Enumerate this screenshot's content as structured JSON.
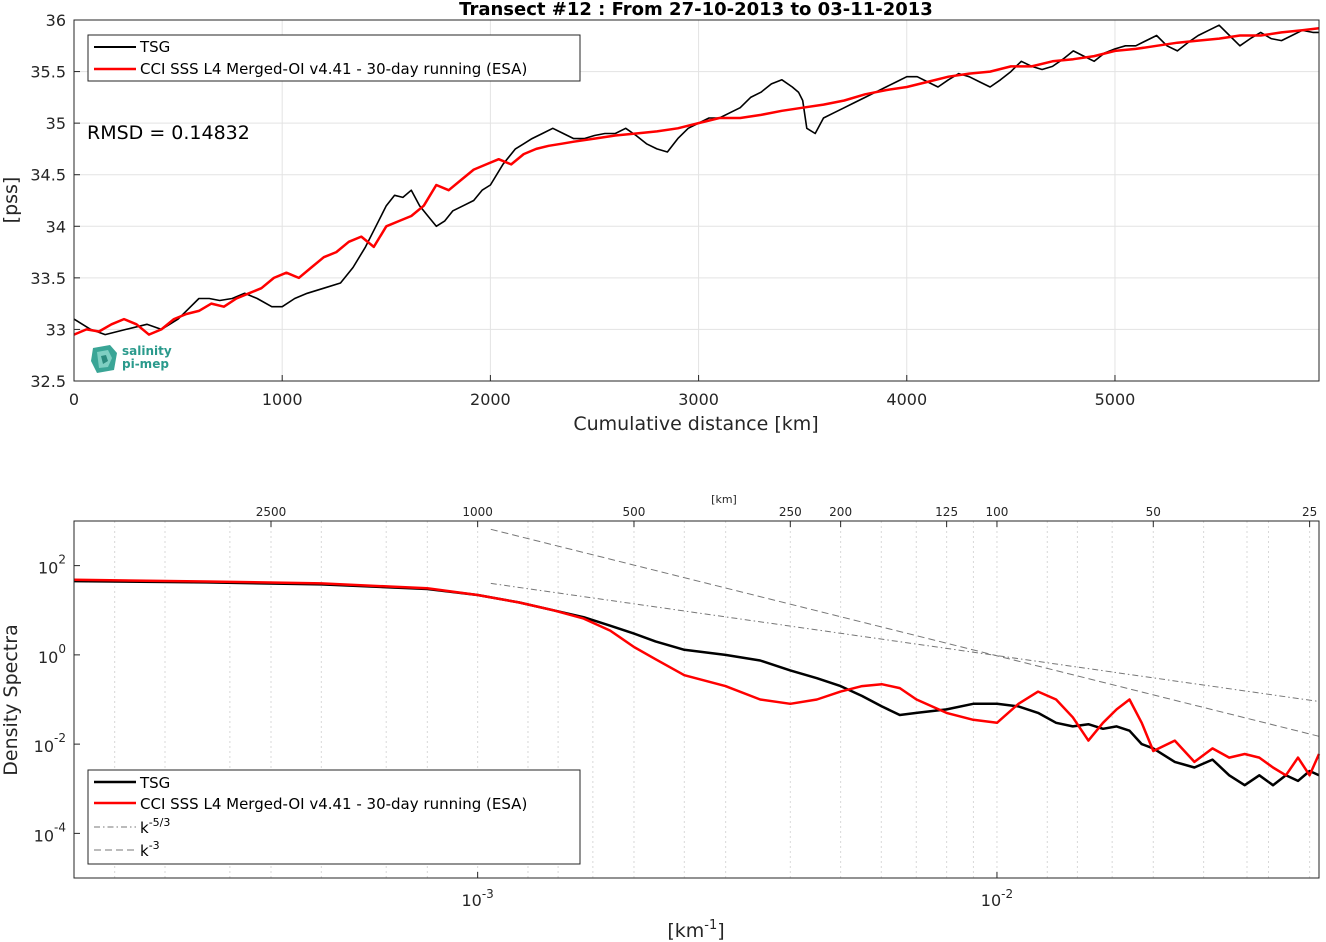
{
  "logo": {
    "line1": "salinity",
    "line2": "pi-mep"
  },
  "chart_data": [
    {
      "type": "line",
      "title": "Transect #12 : From 27-10-2013 to 03-11-2013",
      "xlabel": "Cumulative distance [km]",
      "ylabel": "[pss]",
      "xlim": [
        0,
        5980
      ],
      "ylim": [
        32.5,
        36
      ],
      "xticks": [
        "0",
        "1000",
        "2000",
        "3000",
        "4000",
        "5000"
      ],
      "yticks": [
        "32.5",
        "33",
        "33.5",
        "34",
        "34.5",
        "35",
        "35.5",
        "36"
      ],
      "grid": true,
      "legend_position": "top-left",
      "annotation": "RMSD = 0.14832",
      "series": [
        {
          "name": "TSG",
          "color": "#000000",
          "x": [
            0,
            80,
            150,
            250,
            350,
            420,
            500,
            550,
            600,
            650,
            700,
            760,
            820,
            880,
            950,
            1000,
            1060,
            1120,
            1200,
            1280,
            1340,
            1400,
            1450,
            1500,
            1540,
            1580,
            1620,
            1660,
            1700,
            1740,
            1780,
            1820,
            1870,
            1920,
            1960,
            2000,
            2060,
            2120,
            2160,
            2200,
            2250,
            2300,
            2350,
            2400,
            2450,
            2500,
            2550,
            2600,
            2650,
            2700,
            2750,
            2800,
            2850,
            2900,
            2950,
            3000,
            3050,
            3100,
            3150,
            3200,
            3250,
            3300,
            3350,
            3400,
            3450,
            3480,
            3500,
            3520,
            3560,
            3600,
            3650,
            3700,
            3750,
            3800,
            3850,
            3900,
            3950,
            4000,
            4050,
            4100,
            4150,
            4200,
            4250,
            4300,
            4350,
            4400,
            4450,
            4500,
            4550,
            4600,
            4650,
            4700,
            4750,
            4800,
            4850,
            4900,
            4950,
            5000,
            5050,
            5100,
            5150,
            5200,
            5250,
            5300,
            5350,
            5400,
            5450,
            5500,
            5550,
            5600,
            5650,
            5700,
            5750,
            5800,
            5850,
            5900,
            5950,
            5980
          ],
          "y": [
            33.1,
            33.0,
            32.95,
            33.0,
            33.05,
            33.0,
            33.1,
            33.2,
            33.3,
            33.3,
            33.28,
            33.3,
            33.35,
            33.3,
            33.22,
            33.22,
            33.3,
            33.35,
            33.4,
            33.45,
            33.6,
            33.8,
            34.0,
            34.2,
            34.3,
            34.28,
            34.35,
            34.2,
            34.1,
            34.0,
            34.05,
            34.15,
            34.2,
            34.25,
            34.35,
            34.4,
            34.6,
            34.75,
            34.8,
            34.85,
            34.9,
            34.95,
            34.9,
            34.85,
            34.85,
            34.88,
            34.9,
            34.9,
            34.95,
            34.88,
            34.8,
            34.75,
            34.72,
            34.85,
            34.95,
            35.0,
            35.05,
            35.05,
            35.1,
            35.15,
            35.25,
            35.3,
            35.38,
            35.42,
            35.35,
            35.3,
            35.22,
            34.95,
            34.9,
            35.05,
            35.1,
            35.15,
            35.2,
            35.25,
            35.3,
            35.35,
            35.4,
            35.45,
            35.45,
            35.4,
            35.35,
            35.42,
            35.48,
            35.45,
            35.4,
            35.35,
            35.42,
            35.5,
            35.6,
            35.55,
            35.52,
            35.55,
            35.62,
            35.7,
            35.65,
            35.6,
            35.68,
            35.72,
            35.75,
            35.75,
            35.8,
            35.85,
            35.75,
            35.7,
            35.78,
            35.85,
            35.9,
            35.95,
            35.85,
            35.75,
            35.82,
            35.88,
            35.82,
            35.8,
            35.85,
            35.9,
            35.88,
            35.88
          ]
        },
        {
          "name": "CCI SSS L4 Merged-OI v4.41 - 30-day running (ESA)",
          "color": "#ff0000",
          "x": [
            0,
            60,
            120,
            180,
            240,
            300,
            360,
            420,
            480,
            540,
            600,
            660,
            720,
            780,
            840,
            900,
            960,
            1020,
            1080,
            1140,
            1200,
            1260,
            1320,
            1380,
            1440,
            1500,
            1560,
            1620,
            1680,
            1740,
            1800,
            1860,
            1920,
            1980,
            2040,
            2100,
            2160,
            2220,
            2280,
            2340,
            2400,
            2500,
            2600,
            2700,
            2800,
            2900,
            3000,
            3100,
            3200,
            3300,
            3400,
            3500,
            3600,
            3700,
            3800,
            3900,
            4000,
            4100,
            4200,
            4300,
            4400,
            4500,
            4600,
            4700,
            4800,
            4900,
            5000,
            5100,
            5200,
            5300,
            5400,
            5500,
            5600,
            5700,
            5800,
            5900,
            5980
          ],
          "y": [
            32.95,
            33.0,
            32.98,
            33.05,
            33.1,
            33.05,
            32.95,
            33.0,
            33.1,
            33.15,
            33.18,
            33.25,
            33.22,
            33.3,
            33.35,
            33.4,
            33.5,
            33.55,
            33.5,
            33.6,
            33.7,
            33.75,
            33.85,
            33.9,
            33.8,
            34.0,
            34.05,
            34.1,
            34.2,
            34.4,
            34.35,
            34.45,
            34.55,
            34.6,
            34.65,
            34.6,
            34.7,
            34.75,
            34.78,
            34.8,
            34.82,
            34.85,
            34.88,
            34.9,
            34.92,
            34.95,
            35.0,
            35.05,
            35.05,
            35.08,
            35.12,
            35.15,
            35.18,
            35.22,
            35.28,
            35.32,
            35.35,
            35.4,
            35.45,
            35.48,
            35.5,
            35.55,
            35.55,
            35.6,
            35.62,
            35.65,
            35.7,
            35.72,
            35.75,
            35.78,
            35.8,
            35.82,
            35.85,
            35.85,
            35.88,
            35.9,
            35.92
          ]
        }
      ]
    },
    {
      "type": "line",
      "title": "",
      "xlabel": "[km⁻¹]",
      "xlabel_base": "[km",
      "xlabel_sup": "-1",
      "xlabel_tail": "]",
      "ylabel": "Density Spectra",
      "xscale": "log",
      "yscale": "log",
      "xlim": [
        0.000167,
        0.0417
      ],
      "ylim": [
        1e-05,
        1000
      ],
      "xticks": [
        {
          "base": "10",
          "exp": "-3"
        },
        {
          "base": "10",
          "exp": "-2"
        }
      ],
      "yticks": [
        {
          "base": "10",
          "exp": "2"
        },
        {
          "base": "10",
          "exp": "0"
        },
        {
          "base": "10",
          "exp": "-2"
        },
        {
          "base": "10",
          "exp": "-4"
        }
      ],
      "top_axis_label": "[km]",
      "top_ticks": [
        "2500",
        "1000",
        "500",
        "250",
        "200",
        "125",
        "100",
        "50",
        "25"
      ],
      "grid": true,
      "legend_position": "bottom-left",
      "series": [
        {
          "name": "TSG",
          "color": "#000000",
          "x": [
            0.000167,
            0.0003,
            0.0005,
            0.0008,
            0.001,
            0.0012,
            0.0014,
            0.0016,
            0.0018,
            0.002,
            0.0022,
            0.0025,
            0.003,
            0.0035,
            0.004,
            0.0045,
            0.005,
            0.0055,
            0.006,
            0.0065,
            0.007,
            0.008,
            0.009,
            0.01,
            0.011,
            0.012,
            0.013,
            0.014,
            0.015,
            0.016,
            0.017,
            0.018,
            0.019,
            0.02,
            0.022,
            0.024,
            0.026,
            0.028,
            0.03,
            0.032,
            0.034,
            0.036,
            0.038,
            0.04,
            0.0417
          ],
          "y": [
            45,
            42,
            38,
            30,
            22,
            15,
            10,
            7,
            4.5,
            3,
            2,
            1.3,
            1.0,
            0.75,
            0.45,
            0.3,
            0.2,
            0.12,
            0.07,
            0.045,
            0.05,
            0.06,
            0.08,
            0.08,
            0.07,
            0.05,
            0.03,
            0.025,
            0.028,
            0.022,
            0.025,
            0.02,
            0.01,
            0.008,
            0.004,
            0.003,
            0.0045,
            0.002,
            0.0012,
            0.002,
            0.0012,
            0.002,
            0.0015,
            0.0025,
            0.002
          ]
        },
        {
          "name": "CCI SSS L4 Merged-OI v4.41 - 30-day running (ESA)",
          "color": "#ff0000",
          "x": [
            0.000167,
            0.0003,
            0.0005,
            0.0008,
            0.001,
            0.0012,
            0.0014,
            0.0016,
            0.0018,
            0.002,
            0.0022,
            0.0025,
            0.003,
            0.0035,
            0.004,
            0.0045,
            0.005,
            0.0055,
            0.006,
            0.0065,
            0.007,
            0.008,
            0.009,
            0.01,
            0.011,
            0.012,
            0.013,
            0.014,
            0.015,
            0.016,
            0.017,
            0.018,
            0.019,
            0.02,
            0.022,
            0.024,
            0.026,
            0.028,
            0.03,
            0.032,
            0.034,
            0.036,
            0.038,
            0.04,
            0.0417
          ],
          "y": [
            48,
            44,
            40,
            31,
            22,
            15,
            10,
            6.5,
            3.5,
            1.5,
            0.8,
            0.35,
            0.2,
            0.1,
            0.08,
            0.1,
            0.15,
            0.2,
            0.22,
            0.18,
            0.1,
            0.05,
            0.035,
            0.03,
            0.08,
            0.15,
            0.1,
            0.04,
            0.012,
            0.03,
            0.06,
            0.1,
            0.03,
            0.007,
            0.012,
            0.004,
            0.008,
            0.005,
            0.006,
            0.005,
            0.003,
            0.002,
            0.005,
            0.002,
            0.006
          ]
        },
        {
          "name": "k⁻⁵ᐟ³",
          "name_base": "k",
          "name_sup": "-5/3",
          "color": "#777777",
          "dash": "dashdot",
          "x": [
            0.00106,
            0.0417
          ],
          "y": [
            40,
            0.09
          ]
        },
        {
          "name": "k⁻³",
          "name_base": "k",
          "name_sup": "-3",
          "color": "#777777",
          "dash": "dashed",
          "x": [
            0.00106,
            0.0417
          ],
          "y": [
            650,
            0.015
          ]
        }
      ]
    }
  ]
}
